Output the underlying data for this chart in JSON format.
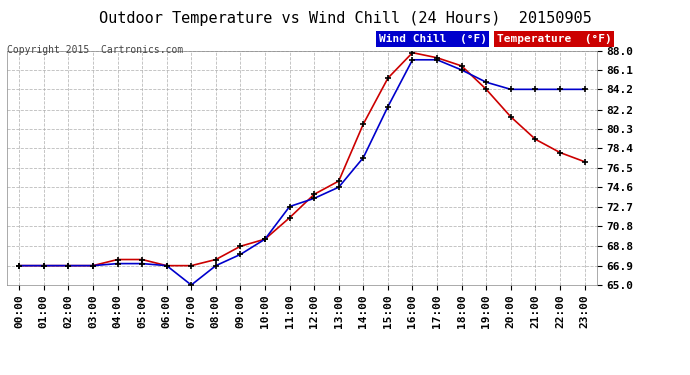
{
  "title": "Outdoor Temperature vs Wind Chill (24 Hours)  20150905",
  "copyright": "Copyright 2015  Cartronics.com",
  "legend_wind_chill": "Wind Chill  (°F)",
  "legend_temperature": "Temperature  (°F)",
  "hours": [
    0,
    1,
    2,
    3,
    4,
    5,
    6,
    7,
    8,
    9,
    10,
    11,
    12,
    13,
    14,
    15,
    16,
    17,
    18,
    19,
    20,
    21,
    22,
    23
  ],
  "temperature": [
    66.9,
    66.9,
    66.9,
    66.9,
    67.5,
    67.5,
    66.9,
    66.9,
    67.5,
    68.8,
    69.5,
    71.6,
    73.9,
    75.2,
    80.8,
    85.3,
    87.8,
    87.3,
    86.5,
    84.2,
    81.5,
    79.3,
    78.0,
    77.1
  ],
  "wind_chill": [
    66.9,
    66.9,
    66.9,
    66.9,
    67.1,
    67.1,
    66.9,
    65.0,
    66.9,
    68.0,
    69.5,
    72.7,
    73.5,
    74.6,
    77.5,
    82.5,
    87.1,
    87.1,
    86.1,
    84.9,
    84.2,
    84.2,
    84.2,
    84.2
  ],
  "ylim": [
    65.0,
    88.0
  ],
  "yticks": [
    65.0,
    66.9,
    68.8,
    70.8,
    72.7,
    74.6,
    76.5,
    78.4,
    80.3,
    82.2,
    84.2,
    86.1,
    88.0
  ],
  "ytick_labels": [
    "65.0",
    "66.9",
    "68.8",
    "70.8",
    "72.7",
    "74.6",
    "76.5",
    "78.4",
    "80.3",
    "82.2",
    "84.2",
    "86.1",
    "88.0"
  ],
  "background_color": "#ffffff",
  "plot_bg_color": "#ffffff",
  "grid_color": "#aaaaaa",
  "temp_color": "#cc0000",
  "wind_color": "#0000cc",
  "marker_color": "#000000",
  "title_fontsize": 11,
  "copyright_fontsize": 7,
  "tick_fontsize": 8,
  "legend_fontsize": 8
}
